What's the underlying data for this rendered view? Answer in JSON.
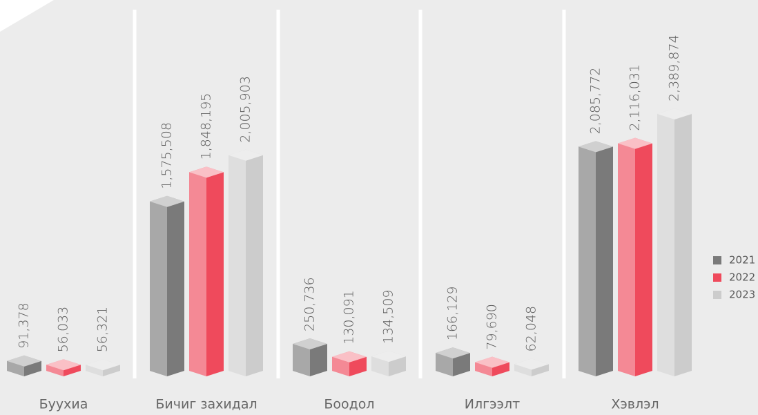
{
  "chart_data": {
    "type": "bar3d",
    "categories": [
      "Буухиа",
      "Бичиг захидал",
      "Боодол",
      "Илгээлт",
      "Хэвлэл"
    ],
    "series": [
      {
        "name": "2021",
        "color": "#7a7a7a",
        "values": [
          91378,
          1575508,
          250736,
          166129,
          2085772
        ],
        "value_labels": [
          "91,378",
          "1,575,508",
          "250,736",
          "166,129",
          "2,085,772"
        ]
      },
      {
        "name": "2022",
        "color": "#ef4a5c",
        "values": [
          56033,
          1848195,
          130091,
          79690,
          2116031
        ],
        "value_labels": [
          "56,033",
          "1,848,195",
          "130,091",
          "79,690",
          "2,116,031"
        ]
      },
      {
        "name": "2023",
        "color": "#cccccc",
        "values": [
          56321,
          2005903,
          134509,
          62048,
          2389874
        ],
        "value_labels": [
          "56,321",
          "2,005,903",
          "134,509",
          "62,048",
          "2,389,874"
        ]
      }
    ],
    "legend": "right"
  }
}
